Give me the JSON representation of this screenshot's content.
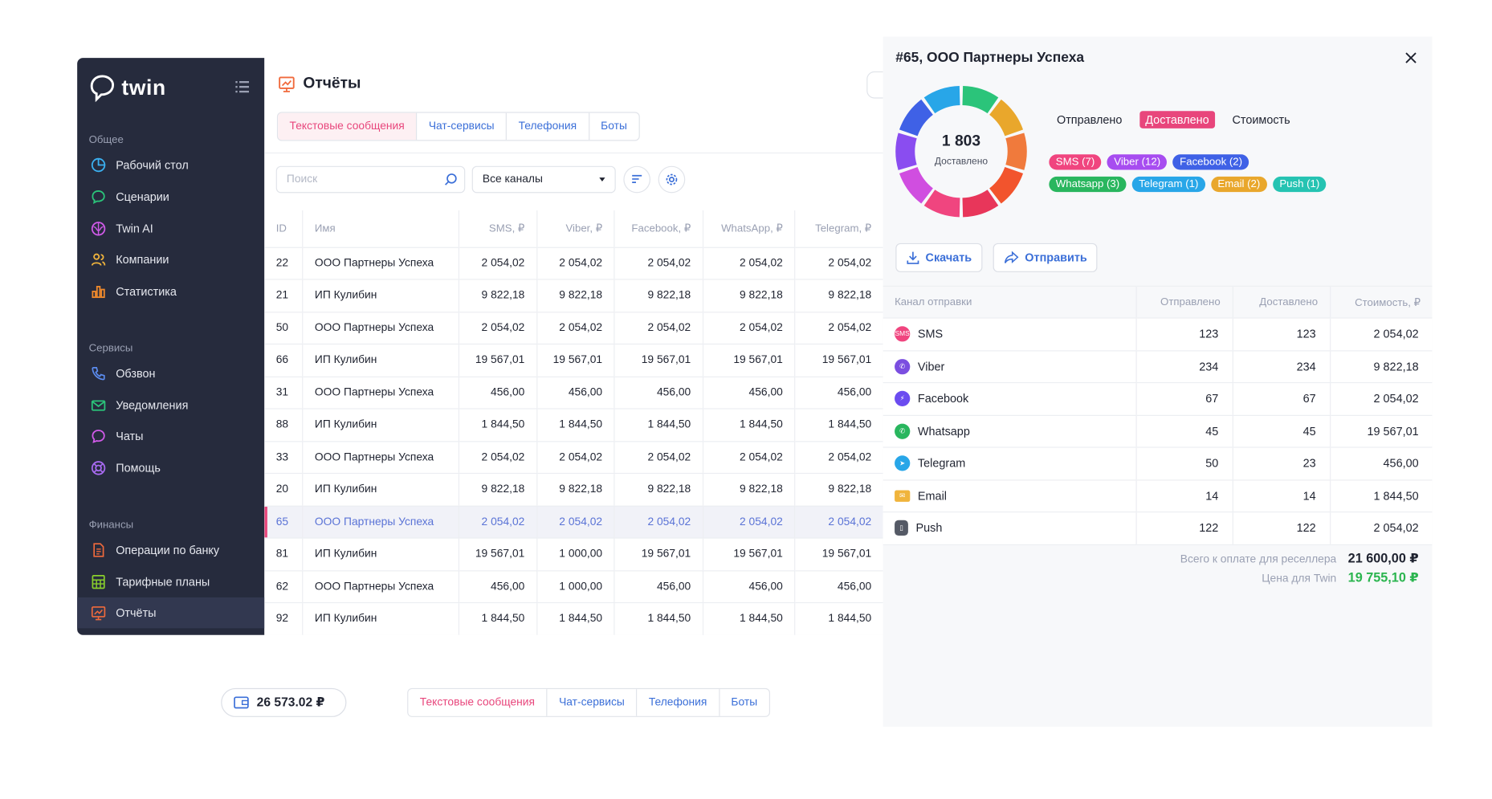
{
  "brand": {
    "name": "twin"
  },
  "sidebar": {
    "sections": [
      {
        "title": "Общее",
        "items": [
          {
            "label": "Рабочий стол",
            "icon": "pie-chart-icon"
          },
          {
            "label": "Сценарии",
            "icon": "chat-bubble-icon"
          },
          {
            "label": "Twin AI",
            "icon": "brain-icon"
          },
          {
            "label": "Компании",
            "icon": "users-icon"
          },
          {
            "label": "Статистика",
            "icon": "bar-chart-icon"
          }
        ]
      },
      {
        "title": "Сервисы",
        "items": [
          {
            "label": "Обзвон",
            "icon": "phone-icon"
          },
          {
            "label": "Уведомления",
            "icon": "envelope-icon"
          },
          {
            "label": "Чаты",
            "icon": "chat-icon"
          },
          {
            "label": "Помощь",
            "icon": "lifebuoy-icon"
          }
        ]
      },
      {
        "title": "Финансы",
        "items": [
          {
            "label": "Операции по банку",
            "icon": "document-icon"
          },
          {
            "label": "Тарифные планы",
            "icon": "calculator-icon"
          },
          {
            "label": "Отчёты",
            "icon": "report-icon"
          }
        ]
      }
    ]
  },
  "main": {
    "title": "Отчёты",
    "tabs": [
      "Текстовые сообщения",
      "Чат-сервисы",
      "Телефония",
      "Боты"
    ],
    "search_placeholder": "Поиск",
    "channel_select": "Все каналы",
    "table": {
      "columns": [
        "ID",
        "Имя",
        "SMS, ₽",
        "Viber, ₽",
        "Facebook, ₽",
        "WhatsApp, ₽",
        "Telegram, ₽"
      ],
      "rows": [
        [
          "22",
          "ООО Партнеры Успеха",
          "2 054,02",
          "2 054,02",
          "2 054,02",
          "2 054,02",
          "2 054,02"
        ],
        [
          "21",
          "ИП Кулибин",
          "9 822,18",
          "9 822,18",
          "9 822,18",
          "9 822,18",
          "9 822,18"
        ],
        [
          "50",
          "ООО Партнеры Успеха",
          "2 054,02",
          "2 054,02",
          "2 054,02",
          "2 054,02",
          "2 054,02"
        ],
        [
          "66",
          "ИП Кулибин",
          "19 567,01",
          "19 567,01",
          "19 567,01",
          "19 567,01",
          "19 567,01"
        ],
        [
          "31",
          "ООО Партнеры Успеха",
          "456,00",
          "456,00",
          "456,00",
          "456,00",
          "456,00"
        ],
        [
          "88",
          "ИП Кулибин",
          "1 844,50",
          "1 844,50",
          "1 844,50",
          "1 844,50",
          "1 844,50"
        ],
        [
          "33",
          "ООО Партнеры Успеха",
          "2 054,02",
          "2 054,02",
          "2 054,02",
          "2 054,02",
          "2 054,02"
        ],
        [
          "20",
          "ИП Кулибин",
          "9 822,18",
          "9 822,18",
          "9 822,18",
          "9 822,18",
          "9 822,18"
        ],
        [
          "65",
          "ООО Партнеры Успеха",
          "2 054,02",
          "2 054,02",
          "2 054,02",
          "2 054,02",
          "2 054,02"
        ],
        [
          "81",
          "ИП Кулибин",
          "19 567,01",
          "1 000,00",
          "19 567,01",
          "19 567,01",
          "19 567,01"
        ],
        [
          "62",
          "ООО Партнеры Успеха",
          "456,00",
          "1 000,00",
          "456,00",
          "456,00",
          "456,00"
        ],
        [
          "92",
          "ИП Кулибин",
          "1 844,50",
          "1 844,50",
          "1 844,50",
          "1 844,50",
          "1 844,50"
        ]
      ],
      "selected_row_id": "65"
    }
  },
  "bottom": {
    "balance": "26 573.02 ₽",
    "tabs": [
      "Текстовые сообщения",
      "Чат-сервисы",
      "Телефония",
      "Боты"
    ]
  },
  "panel": {
    "title": "#65, ООО Партнеры Успеха",
    "donut_value": "1 803",
    "donut_label": "Доставлено",
    "modes": [
      "Отправлено",
      "Доставлено",
      "Стоимость"
    ],
    "active_mode": "Доставлено",
    "legend": [
      {
        "label": "SMS (7)",
        "color": "#f0457f"
      },
      {
        "label": "Viber (12)",
        "color": "#a74df0"
      },
      {
        "label": "Facebook (2)",
        "color": "#3f61e6"
      },
      {
        "label": "Whatsapp (3)",
        "color": "#29b65e"
      },
      {
        "label": "Telegram (1)",
        "color": "#28a6e8"
      },
      {
        "label": "Email (2)",
        "color": "#e9a72c"
      },
      {
        "label": "Push (1)",
        "color": "#25c3b2"
      }
    ],
    "download_label": "Скачать",
    "send_label": "Отправить",
    "channels_table": {
      "columns": [
        "Канал отправки",
        "Отправлено",
        "Доставлено",
        "Стоимость, ₽"
      ],
      "rows": [
        {
          "name": "SMS",
          "icon": "sms-icon",
          "color": "#f0457f",
          "sent": "123",
          "delivered": "123",
          "cost": "2 054,02"
        },
        {
          "name": "Viber",
          "icon": "viber-icon",
          "color": "#7b4ee0",
          "sent": "234",
          "delivered": "234",
          "cost": "9 822,18"
        },
        {
          "name": "Facebook",
          "icon": "messenger-icon",
          "color": "#6b4cf0",
          "sent": "67",
          "delivered": "67",
          "cost": "2 054,02"
        },
        {
          "name": "Whatsapp",
          "icon": "whatsapp-icon",
          "color": "#29b65e",
          "sent": "45",
          "delivered": "45",
          "cost": "19 567,01"
        },
        {
          "name": "Telegram",
          "icon": "telegram-icon",
          "color": "#28a6e8",
          "sent": "50",
          "delivered": "23",
          "cost": "456,00"
        },
        {
          "name": "Email",
          "icon": "email-icon",
          "color": "#f0b43c",
          "sent": "14",
          "delivered": "14",
          "cost": "1 844,50"
        },
        {
          "name": "Push",
          "icon": "push-icon",
          "color": "#555a66",
          "sent": "122",
          "delivered": "122",
          "cost": "2 054,02"
        }
      ]
    },
    "total_label": "Всего к оплате для реселлера",
    "total_value": "21 600,00 ₽",
    "twin_label": "Цена для Twin",
    "twin_value": "19 755,10 ₽"
  },
  "colors": {
    "accent_pink": "#e8467c",
    "accent_blue": "#3b6fd8",
    "accent_green": "#2bb54f",
    "sidebar_bg": "#262b3d"
  }
}
